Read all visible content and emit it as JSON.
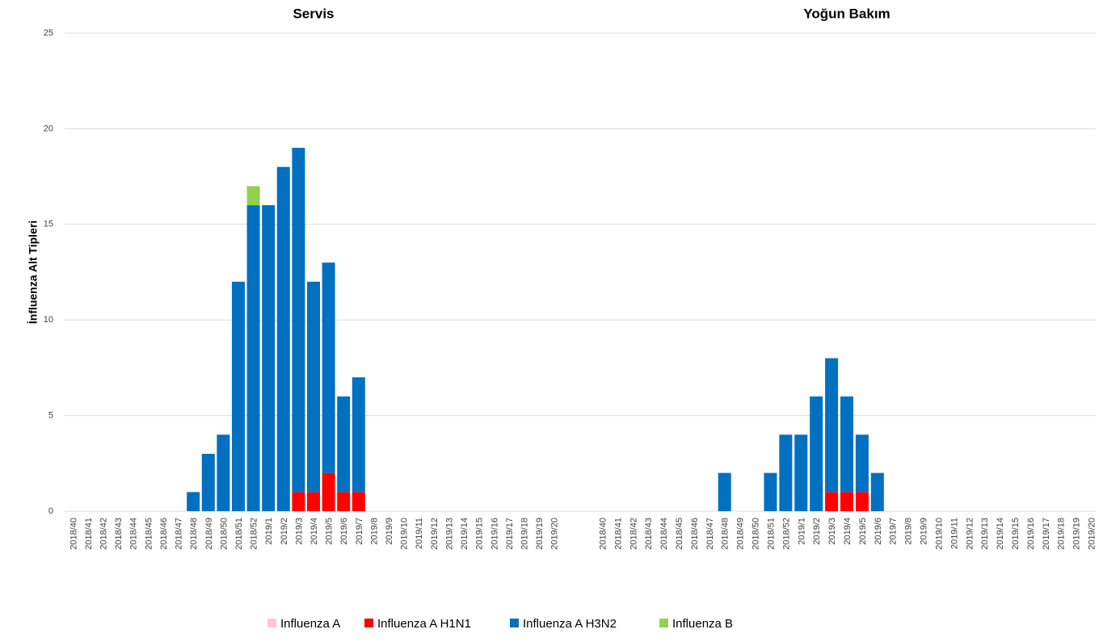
{
  "chart_data": {
    "type": "bar",
    "stacked": true,
    "ylabel": "İnfluenza  Alt  Tipleri",
    "ylim": [
      0,
      25
    ],
    "yticks": [
      0,
      5,
      10,
      15,
      20,
      25
    ],
    "grid": true,
    "series": [
      {
        "name": "Influenza A",
        "color": "#ffc7ce"
      },
      {
        "name": "Influenza A H1N1",
        "color": "#ff0000"
      },
      {
        "name": "Influenza A H3N2",
        "color": "#0070c0"
      },
      {
        "name": "Influenza B",
        "color": "#92d050"
      }
    ],
    "legend": "bottom",
    "panels": [
      {
        "title": "Servis",
        "categories": [
          "2018/40",
          "2018/41",
          "2018/42",
          "2018/43",
          "2018/44",
          "2018/45",
          "2018/46",
          "2018/47",
          "2018/48",
          "2018/49",
          "2018/50",
          "2018/51",
          "2018/52",
          "2019/1",
          "2019/2",
          "2019/3",
          "2019/4",
          "2019/5",
          "2019/6",
          "2019/7",
          "2019/8",
          "2019/9",
          "2019/10",
          "2019/11",
          "2019/12",
          "2019/13",
          "2019/14",
          "2019/15",
          "2019/16",
          "2019/17",
          "2019/18",
          "2019/19",
          "2019/20"
        ],
        "values": [
          [
            0,
            0,
            0,
            0,
            0,
            0,
            0,
            0,
            0,
            0,
            0,
            0,
            0,
            0,
            0,
            0,
            0,
            0,
            0,
            0,
            0,
            0,
            0,
            0,
            0,
            0,
            0,
            0,
            0,
            0,
            0,
            0,
            0
          ],
          [
            0,
            0,
            0,
            0,
            0,
            0,
            0,
            0,
            0,
            0,
            0,
            0,
            0,
            0,
            0,
            1,
            1,
            2,
            1,
            1,
            0,
            0,
            0,
            0,
            0,
            0,
            0,
            0,
            0,
            0,
            0,
            0,
            0
          ],
          [
            0,
            0,
            0,
            0,
            0,
            0,
            0,
            0,
            1,
            3,
            4,
            12,
            16,
            16,
            18,
            18,
            11,
            11,
            5,
            6,
            0,
            0,
            0,
            0,
            0,
            0,
            0,
            0,
            0,
            0,
            0,
            0,
            0
          ],
          [
            0,
            0,
            0,
            0,
            0,
            0,
            0,
            0,
            0,
            0,
            0,
            0,
            1,
            0,
            0,
            0,
            0,
            0,
            0,
            0,
            0,
            0,
            0,
            0,
            0,
            0,
            0,
            0,
            0,
            0,
            0,
            0,
            0
          ]
        ]
      },
      {
        "title": "Yoğun Bakım",
        "categories": [
          "2018/40",
          "2018/41",
          "2018/42",
          "2018/43",
          "2018/44",
          "2018/45",
          "2018/46",
          "2018/47",
          "2018/48",
          "2018/49",
          "2018/50",
          "2018/51",
          "2018/52",
          "2019/1",
          "2019/2",
          "2019/3",
          "2019/4",
          "2019/5",
          "2019/6",
          "2019/7",
          "2019/8",
          "2019/9",
          "2019/10",
          "2019/11",
          "2019/12",
          "2019/13",
          "2019/14",
          "2019/15",
          "2019/16",
          "2019/17",
          "2019/18",
          "2019/19",
          "2019/20"
        ],
        "values": [
          [
            0,
            0,
            0,
            0,
            0,
            0,
            0,
            0,
            0,
            0,
            0,
            0,
            0,
            0,
            0,
            0,
            0,
            0,
            0,
            0,
            0,
            0,
            0,
            0,
            0,
            0,
            0,
            0,
            0,
            0,
            0,
            0,
            0
          ],
          [
            0,
            0,
            0,
            0,
            0,
            0,
            0,
            0,
            0,
            0,
            0,
            0,
            0,
            0,
            0,
            1,
            1,
            1,
            0,
            0,
            0,
            0,
            0,
            0,
            0,
            0,
            0,
            0,
            0,
            0,
            0,
            0,
            0
          ],
          [
            0,
            0,
            0,
            0,
            0,
            0,
            0,
            0,
            2,
            0,
            0,
            2,
            4,
            4,
            6,
            7,
            5,
            3,
            2,
            0,
            0,
            0,
            0,
            0,
            0,
            0,
            0,
            0,
            0,
            0,
            0,
            0,
            0
          ],
          [
            0,
            0,
            0,
            0,
            0,
            0,
            0,
            0,
            0,
            0,
            0,
            0,
            0,
            0,
            0,
            0,
            0,
            0,
            0,
            0,
            0,
            0,
            0,
            0,
            0,
            0,
            0,
            0,
            0,
            0,
            0,
            0,
            0
          ]
        ]
      }
    ]
  }
}
